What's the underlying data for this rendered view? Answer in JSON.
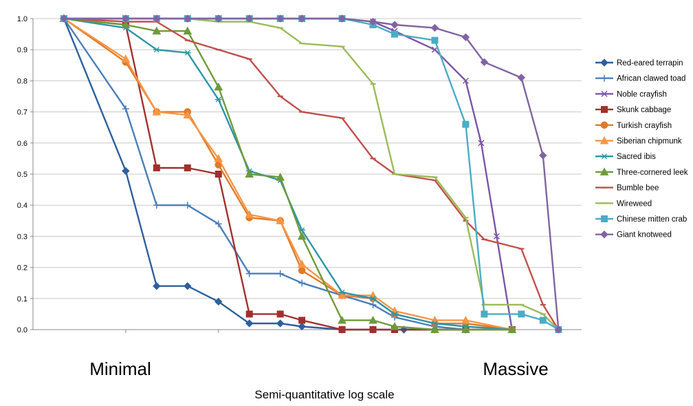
{
  "chart_data": {
    "type": "line",
    "title": "",
    "xlabel": "Semi-quantitative log scale",
    "x_endpoints": {
      "left": "Minimal",
      "right": "Massive"
    },
    "ylabel": "",
    "ylim": [
      0,
      1.0
    ],
    "yticks": [
      "0.0",
      "0.1",
      "0.2",
      "0.3",
      "0.4",
      "0.5",
      "0.6",
      "0.7",
      "0.8",
      "0.9",
      "1.0"
    ],
    "grid": "horizontal",
    "legend_position": "right",
    "series": [
      {
        "name": "Red-eared terrapin",
        "color": "#2e5f9e",
        "marker": "diamond",
        "points": [
          [
            1,
            1.0
          ],
          [
            3,
            0.51
          ],
          [
            4,
            0.14
          ],
          [
            5,
            0.14
          ],
          [
            6,
            0.09
          ],
          [
            7,
            0.02
          ],
          [
            8,
            0.02
          ],
          [
            8.7,
            0.01
          ],
          [
            10,
            0.0
          ],
          [
            11,
            0.0
          ],
          [
            12,
            0.0
          ],
          [
            13,
            0.0
          ],
          [
            14,
            0.0
          ]
        ]
      },
      {
        "name": "African clawed toad",
        "color": "#4a7ebb",
        "marker": "plus",
        "points": [
          [
            1,
            1.0
          ],
          [
            3,
            0.71
          ],
          [
            4,
            0.4
          ],
          [
            5,
            0.4
          ],
          [
            6,
            0.34
          ],
          [
            7,
            0.18
          ],
          [
            8,
            0.18
          ],
          [
            8.7,
            0.15
          ],
          [
            10,
            0.11
          ],
          [
            11,
            0.08
          ],
          [
            11.7,
            0.04
          ],
          [
            13,
            0.01
          ],
          [
            14,
            0.0
          ]
        ]
      },
      {
        "name": "Noble crayfish",
        "color": "#7b55a8",
        "marker": "x",
        "points": [
          [
            1,
            1.0
          ],
          [
            3,
            1.0
          ],
          [
            4,
            1.0
          ],
          [
            5,
            1.0
          ],
          [
            6,
            1.0
          ],
          [
            7,
            1.0
          ],
          [
            8,
            1.0
          ],
          [
            8.7,
            1.0
          ],
          [
            10,
            1.0
          ],
          [
            11,
            0.99
          ],
          [
            11.7,
            0.96
          ],
          [
            13,
            0.9
          ],
          [
            14,
            0.8
          ],
          [
            14.5,
            0.6
          ],
          [
            15,
            0.3
          ],
          [
            15.5,
            0.0
          ]
        ]
      },
      {
        "name": "Skunk cabbage",
        "color": "#a0302d",
        "marker": "square",
        "points": [
          [
            1,
            1.0
          ],
          [
            3,
            0.98
          ],
          [
            4,
            0.52
          ],
          [
            5,
            0.52
          ],
          [
            6,
            0.5
          ],
          [
            7,
            0.05
          ],
          [
            8,
            0.05
          ],
          [
            8.7,
            0.03
          ],
          [
            10,
            0.0
          ],
          [
            11,
            0.0
          ],
          [
            11.7,
            0.0
          ],
          [
            14,
            0.0
          ],
          [
            15.5,
            0.0
          ]
        ]
      },
      {
        "name": "Turkish crayfish",
        "color": "#e07b2a",
        "marker": "circle",
        "points": [
          [
            1,
            1.0
          ],
          [
            3,
            0.86
          ],
          [
            4,
            0.7
          ],
          [
            5,
            0.7
          ],
          [
            6,
            0.53
          ],
          [
            7,
            0.36
          ],
          [
            8,
            0.35
          ],
          [
            8.7,
            0.19
          ],
          [
            10,
            0.11
          ],
          [
            11,
            0.1
          ],
          [
            11.7,
            0.05
          ],
          [
            13,
            0.02
          ],
          [
            14,
            0.02
          ],
          [
            15.5,
            0.0
          ]
        ]
      },
      {
        "name": "Siberian chipmunk",
        "color": "#f79646",
        "marker": "triangle",
        "points": [
          [
            1,
            1.0
          ],
          [
            3,
            0.87
          ],
          [
            4,
            0.7
          ],
          [
            5,
            0.69
          ],
          [
            6,
            0.55
          ],
          [
            7,
            0.37
          ],
          [
            8,
            0.35
          ],
          [
            8.7,
            0.21
          ],
          [
            10,
            0.11
          ],
          [
            11,
            0.11
          ],
          [
            11.7,
            0.06
          ],
          [
            13,
            0.03
          ],
          [
            14,
            0.03
          ],
          [
            15.5,
            0.0
          ]
        ]
      },
      {
        "name": "Sacred ibis",
        "color": "#2c95a8",
        "marker": "star",
        "points": [
          [
            1,
            1.0
          ],
          [
            3,
            0.97
          ],
          [
            4,
            0.9
          ],
          [
            5,
            0.89
          ],
          [
            6,
            0.74
          ],
          [
            7,
            0.51
          ],
          [
            8,
            0.48
          ],
          [
            8.7,
            0.32
          ],
          [
            10,
            0.12
          ],
          [
            11,
            0.1
          ],
          [
            11.7,
            0.05
          ],
          [
            13,
            0.02
          ],
          [
            14,
            0.01
          ],
          [
            15.5,
            0.0
          ]
        ]
      },
      {
        "name": "Three-cornered leek",
        "color": "#6e9a3a",
        "marker": "triangle",
        "points": [
          [
            1,
            1.0
          ],
          [
            3,
            0.98
          ],
          [
            4,
            0.96
          ],
          [
            5,
            0.96
          ],
          [
            6,
            0.78
          ],
          [
            7,
            0.5
          ],
          [
            8,
            0.49
          ],
          [
            8.7,
            0.3
          ],
          [
            10,
            0.03
          ],
          [
            11,
            0.03
          ],
          [
            11.7,
            0.01
          ],
          [
            13,
            0.0
          ],
          [
            14,
            0.0
          ],
          [
            15.5,
            0.0
          ]
        ]
      },
      {
        "name": "Bumble bee",
        "color": "#c0504d",
        "marker": "dash",
        "points": [
          [
            1,
            1.0
          ],
          [
            3,
            0.99
          ],
          [
            4,
            0.99
          ],
          [
            5,
            0.93
          ],
          [
            6,
            0.9
          ],
          [
            7,
            0.87
          ],
          [
            8,
            0.75
          ],
          [
            8.7,
            0.7
          ],
          [
            10,
            0.68
          ],
          [
            11,
            0.55
          ],
          [
            11.7,
            0.5
          ],
          [
            13,
            0.48
          ],
          [
            14,
            0.35
          ],
          [
            14.6,
            0.29
          ],
          [
            15.8,
            0.26
          ],
          [
            16.5,
            0.08
          ],
          [
            17,
            0.0
          ]
        ]
      },
      {
        "name": "Wireweed",
        "color": "#9bbb59",
        "marker": "dash",
        "points": [
          [
            1,
            1.0
          ],
          [
            3,
            1.0
          ],
          [
            4,
            1.0
          ],
          [
            5,
            1.0
          ],
          [
            6,
            0.99
          ],
          [
            7,
            0.99
          ],
          [
            8,
            0.97
          ],
          [
            8.7,
            0.92
          ],
          [
            10,
            0.91
          ],
          [
            11,
            0.79
          ],
          [
            11.7,
            0.5
          ],
          [
            13,
            0.49
          ],
          [
            14,
            0.36
          ],
          [
            14.6,
            0.08
          ],
          [
            15.8,
            0.08
          ],
          [
            16.5,
            0.05
          ],
          [
            17,
            0.0
          ]
        ]
      },
      {
        "name": "Chinese mitten crab",
        "color": "#4bacc6",
        "marker": "square",
        "points": [
          [
            1,
            1.0
          ],
          [
            3,
            1.0
          ],
          [
            4,
            1.0
          ],
          [
            5,
            1.0
          ],
          [
            6,
            1.0
          ],
          [
            7,
            1.0
          ],
          [
            8,
            1.0
          ],
          [
            8.7,
            1.0
          ],
          [
            10,
            1.0
          ],
          [
            11,
            0.98
          ],
          [
            11.7,
            0.95
          ],
          [
            13,
            0.93
          ],
          [
            14,
            0.66
          ],
          [
            14.6,
            0.05
          ],
          [
            15.8,
            0.05
          ],
          [
            16.5,
            0.03
          ],
          [
            17,
            0.0
          ]
        ]
      },
      {
        "name": "Giant knotweed",
        "color": "#8064a2",
        "marker": "diamond",
        "points": [
          [
            1,
            1.0
          ],
          [
            3,
            1.0
          ],
          [
            4,
            1.0
          ],
          [
            5,
            1.0
          ],
          [
            6,
            1.0
          ],
          [
            7,
            1.0
          ],
          [
            8,
            1.0
          ],
          [
            8.7,
            1.0
          ],
          [
            10,
            1.0
          ],
          [
            11,
            0.99
          ],
          [
            11.7,
            0.98
          ],
          [
            13,
            0.97
          ],
          [
            14,
            0.94
          ],
          [
            14.6,
            0.86
          ],
          [
            15.8,
            0.81
          ],
          [
            16.5,
            0.56
          ],
          [
            17,
            0.0
          ]
        ]
      }
    ]
  }
}
